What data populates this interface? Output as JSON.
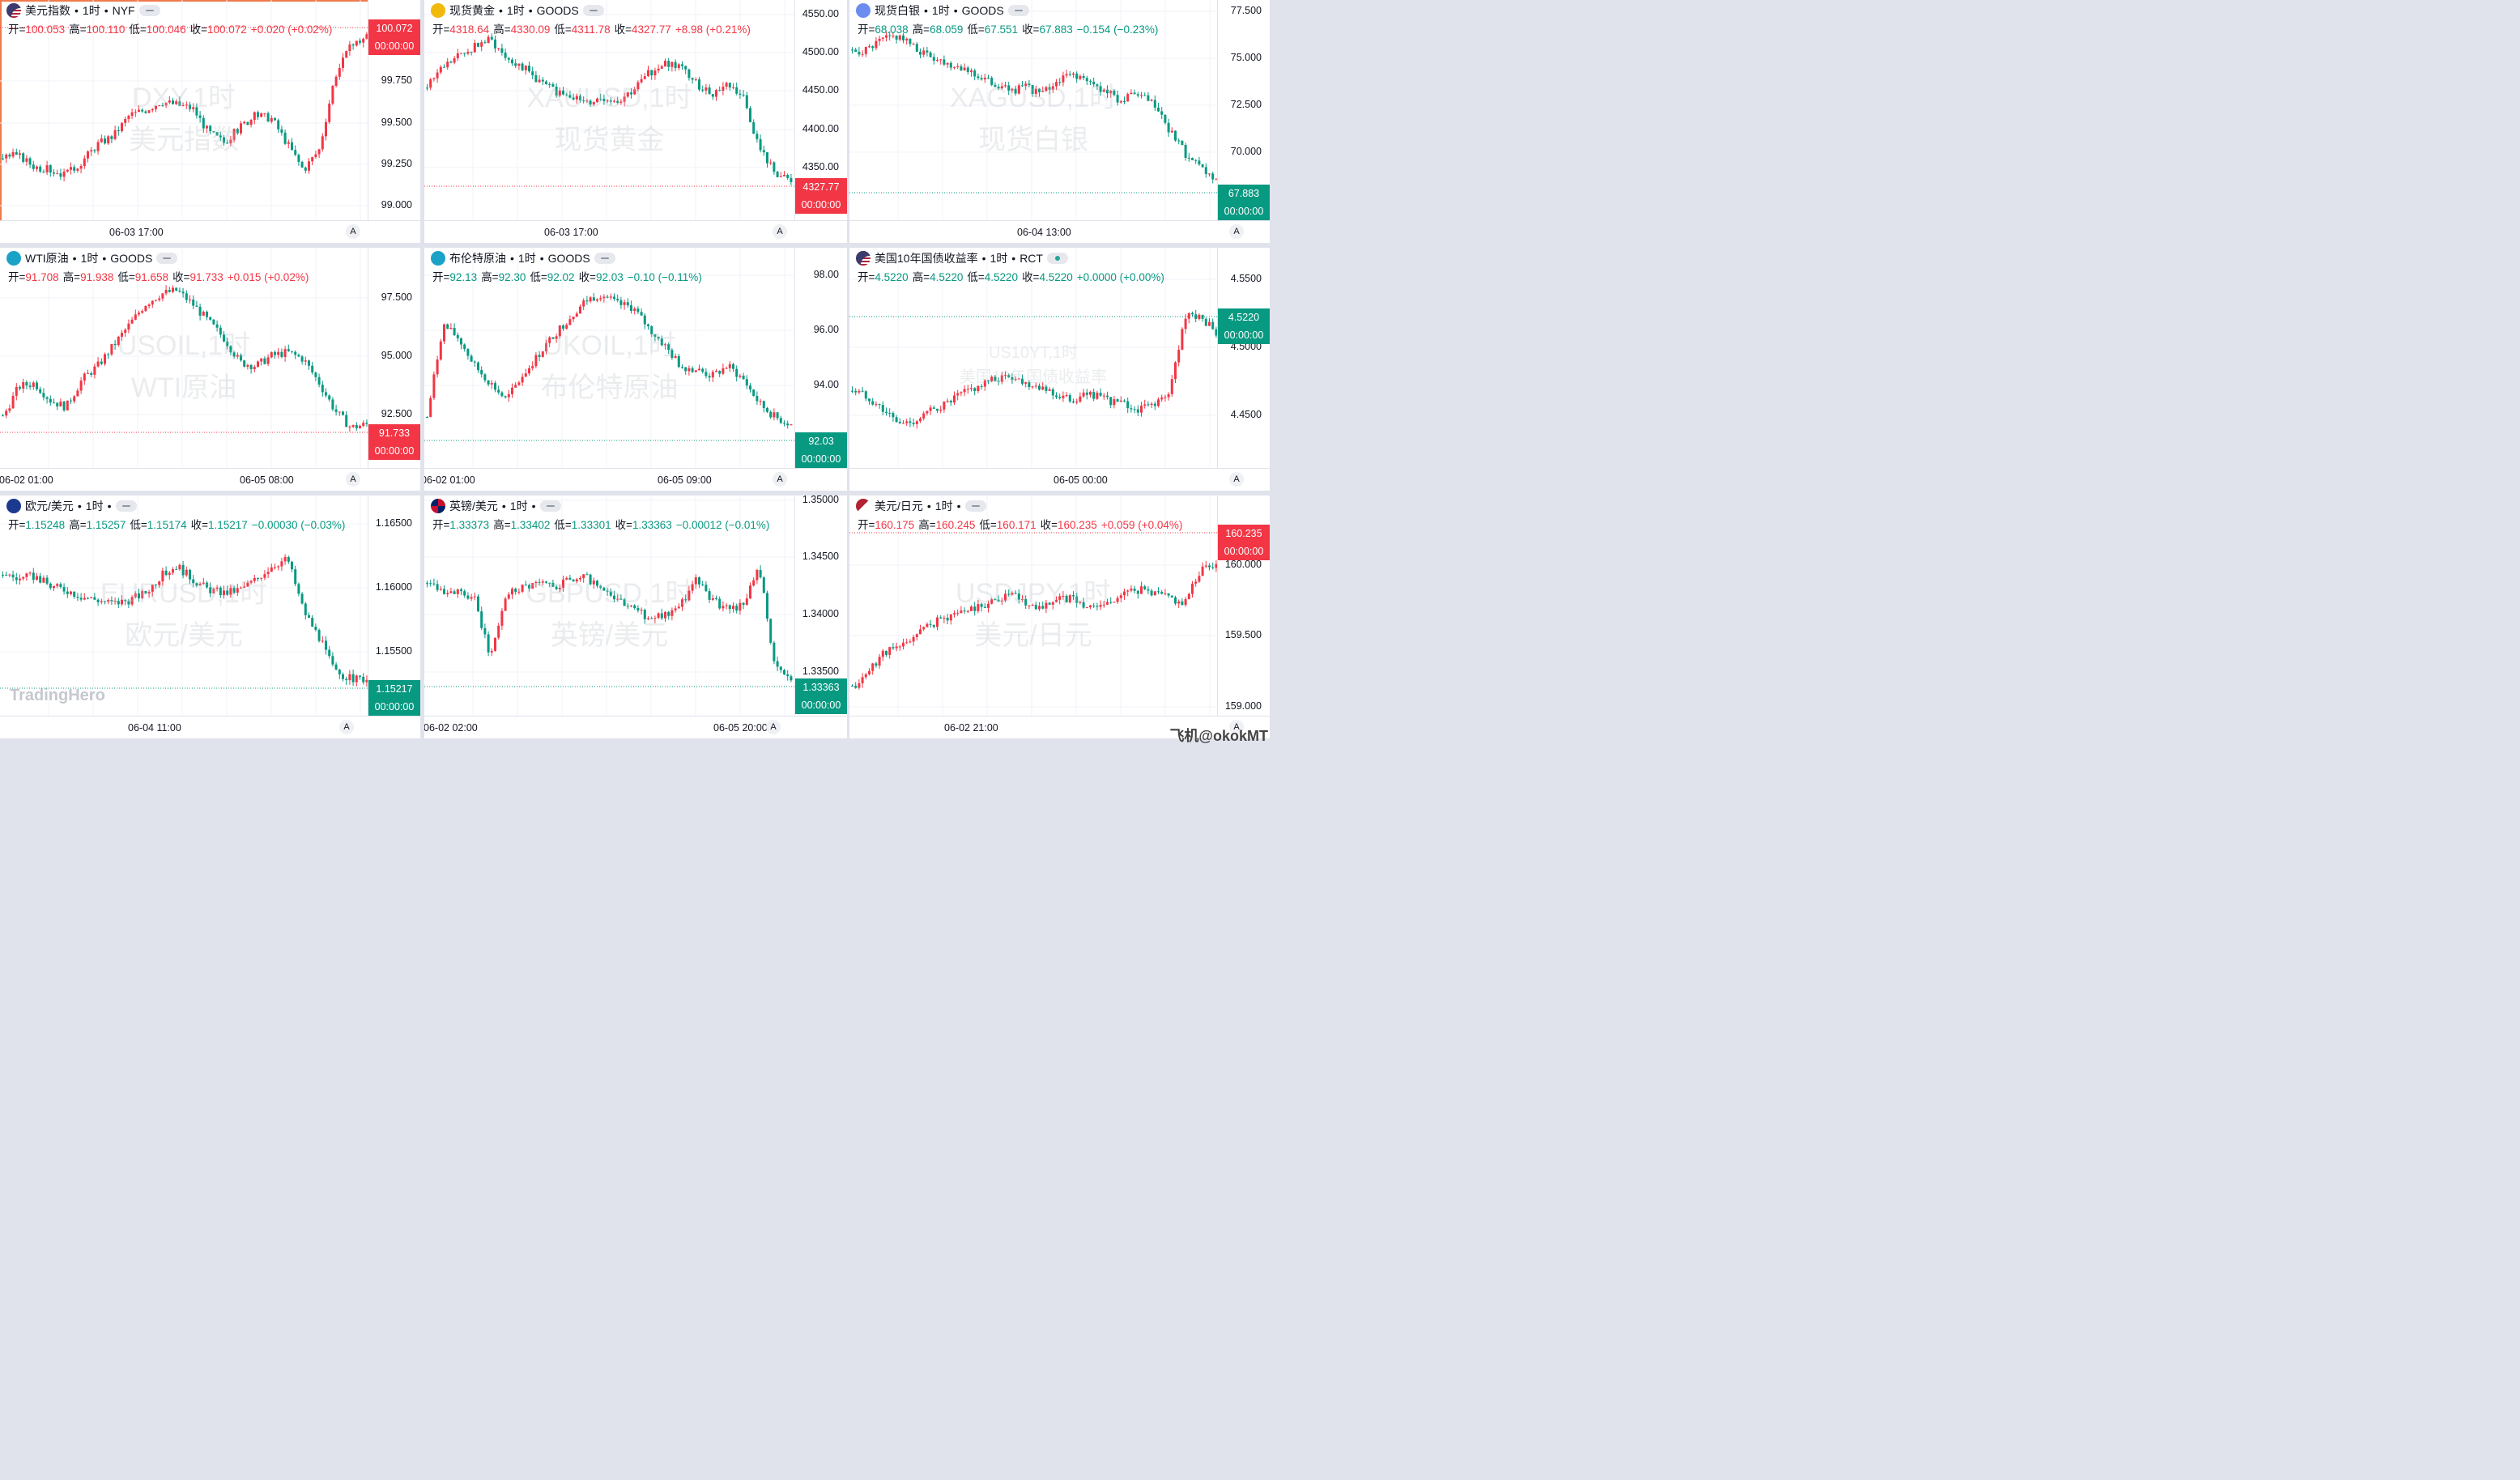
{
  "brand": "TradingHero",
  "footer_watermark": "飞机@okokMT",
  "panels": [
    {
      "symbol_name": "美元指数",
      "sep1": "•",
      "interval": "1时",
      "sep2": "•",
      "exchange": "NYF",
      "flag_icon": "us-flag-icon",
      "pill": "minus",
      "open_lbl": "开=",
      "open": "100.053",
      "high_lbl": "高=",
      "high": "100.110",
      "low_lbl": "低=",
      "low": "100.046",
      "close_lbl": "收=",
      "close": "100.072",
      "change": "+0.020 (+0.02%)",
      "dir": "up",
      "wm1": "DXY,1时",
      "wm2": "美元指数",
      "ticks": [
        "99.000",
        "99.250",
        "99.500",
        "99.750"
      ],
      "price_tag": "100.072",
      "tag_time": "00:00:00",
      "times": [
        "06-03 17:00"
      ],
      "axis_btn": "A",
      "active": true
    },
    {
      "symbol_name": "现货黄金",
      "sep1": "•",
      "interval": "1时",
      "sep2": "•",
      "exchange": "GOODS",
      "flag_icon": "gold-coin-icon",
      "pill": "minus",
      "open_lbl": "开=",
      "open": "4318.64",
      "high_lbl": "高=",
      "high": "4330.09",
      "low_lbl": "低=",
      "low": "4311.78",
      "close_lbl": "收=",
      "close": "4327.77",
      "change": "+8.98 (+0.21%)",
      "dir": "up",
      "wm1": "XAUUSD,1时",
      "wm2": "现货黄金",
      "ticks": [
        "4350.00",
        "4400.00",
        "4450.00",
        "4500.00",
        "4550.00"
      ],
      "price_tag": "4327.77",
      "tag_time": "00:00:00",
      "times": [
        "06-03 17:00"
      ],
      "axis_btn": "A"
    },
    {
      "symbol_name": "现货白银",
      "sep1": "•",
      "interval": "1时",
      "sep2": "•",
      "exchange": "GOODS",
      "flag_icon": "silver-coin-icon",
      "pill": "minus",
      "open_lbl": "开=",
      "open": "68.038",
      "high_lbl": "高=",
      "high": "68.059",
      "low_lbl": "低=",
      "low": "67.551",
      "close_lbl": "收=",
      "close": "67.883",
      "change": "−0.154 (−0.23%)",
      "dir": "dn",
      "wm1": "XAGUSD,1时",
      "wm2": "现货白银",
      "ticks": [
        "70.000",
        "72.500",
        "75.000",
        "77.500"
      ],
      "price_tag": "67.883",
      "tag_time": "00:00:00",
      "times": [
        "06-04 13:00"
      ],
      "axis_btn": "A"
    },
    {
      "symbol_name": "WTI原油",
      "sep1": "•",
      "interval": "1时",
      "sep2": "•",
      "exchange": "GOODS",
      "flag_icon": "oil-icon",
      "pill": "minus",
      "open_lbl": "开=",
      "open": "91.708",
      "high_lbl": "高=",
      "high": "91.938",
      "low_lbl": "低=",
      "low": "91.658",
      "close_lbl": "收=",
      "close": "91.733",
      "change": "+0.015 (+0.02%)",
      "dir": "up",
      "wm1": "USOIL,1时",
      "wm2": "WTI原油",
      "ticks": [
        "92.500",
        "95.000",
        "97.500"
      ],
      "price_tag": "91.733",
      "tag_time": "00:00:00",
      "times": [
        "06-02 01:00",
        "06-05 08:00"
      ],
      "axis_btn": "A"
    },
    {
      "symbol_name": "布伦特原油",
      "sep1": "•",
      "interval": "1时",
      "sep2": "•",
      "exchange": "GOODS",
      "flag_icon": "oil-icon",
      "pill": "minus",
      "open_lbl": "开=",
      "open": "92.13",
      "high_lbl": "高=",
      "high": "92.30",
      "low_lbl": "低=",
      "low": "92.02",
      "close_lbl": "收=",
      "close": "92.03",
      "change": "−0.10 (−0.11%)",
      "dir": "dn",
      "wm1": "UKOIL,1时",
      "wm2": "布伦特原油",
      "ticks": [
        "94.00",
        "96.00",
        "98.00"
      ],
      "price_tag": "92.03",
      "tag_time": "00:00:00",
      "times": [
        "06-02 01:00",
        "06-05 09:00"
      ],
      "axis_btn": "A"
    },
    {
      "symbol_name": "美国10年国债收益率",
      "sep1": "•",
      "interval": "1时",
      "sep2": "•",
      "exchange": "RCT",
      "flag_icon": "us-flag-icon",
      "pill": "dot",
      "open_lbl": "开=",
      "open": "4.5220",
      "high_lbl": "高=",
      "high": "4.5220",
      "low_lbl": "低=",
      "low": "4.5220",
      "close_lbl": "收=",
      "close": "4.5220",
      "change": "+0.0000 (+0.00%)",
      "dir": "dn",
      "wm1": "US10YT,1时",
      "wm2": "美国10年国债收益率",
      "ticks": [
        "4.4500",
        "4.5000",
        "4.5500"
      ],
      "price_tag": "4.5220",
      "tag_time": "00:00:00",
      "times": [
        "06-05 00:00"
      ],
      "axis_btn": "A"
    },
    {
      "symbol_name": "欧元/美元",
      "sep1": "•",
      "interval": "1时",
      "sep2": "•",
      "exchange": "",
      "flag_icon": "eu-flag-icon",
      "pill": "minus",
      "open_lbl": "开=",
      "open": "1.15248",
      "high_lbl": "高=",
      "high": "1.15257",
      "low_lbl": "低=",
      "low": "1.15174",
      "close_lbl": "收=",
      "close": "1.15217",
      "change": "−0.00030 (−0.03%)",
      "dir": "dn",
      "wm1": "EURUSD,1时",
      "wm2": "欧元/美元",
      "ticks": [
        "1.15500",
        "1.16000",
        "1.16500"
      ],
      "price_tag": "1.15217",
      "tag_time": "00:00:00",
      "times": [
        "06-04 11:00"
      ],
      "axis_btn": "A"
    },
    {
      "symbol_name": "英镑/美元",
      "sep1": "•",
      "interval": "1时",
      "sep2": "•",
      "exchange": "",
      "flag_icon": "uk-flag-icon",
      "pill": "minus",
      "open_lbl": "开=",
      "open": "1.33373",
      "high_lbl": "高=",
      "high": "1.33402",
      "low_lbl": "低=",
      "low": "1.33301",
      "close_lbl": "收=",
      "close": "1.33363",
      "change": "−0.00012 (−0.01%)",
      "dir": "dn",
      "wm1": "GBPUSD,1时",
      "wm2": "英镑/美元",
      "ticks": [
        "1.33500",
        "1.34000",
        "1.34500",
        "1.35000"
      ],
      "price_tag": "1.33363",
      "tag_time": "00:00:00",
      "times": [
        "06-02 02:00",
        "06-05 20:00"
      ],
      "axis_btn": "A"
    },
    {
      "symbol_name": "美元/日元",
      "sep1": "•",
      "interval": "1时",
      "sep2": "•",
      "exchange": "",
      "flag_icon": "us-jp-flag-icon",
      "pill": "minus",
      "open_lbl": "开=",
      "open": "160.175",
      "high_lbl": "高=",
      "high": "160.245",
      "low_lbl": "低=",
      "low": "160.171",
      "close_lbl": "收=",
      "close": "160.235",
      "change": "+0.059 (+0.04%)",
      "dir": "up",
      "wm1": "USDJPY,1时",
      "wm2": "美元/日元",
      "ticks": [
        "159.000",
        "159.500",
        "160.000"
      ],
      "price_tag": "160.235",
      "tag_time": "00:00:00",
      "times": [
        "06-02 21:00"
      ],
      "axis_btn": "A"
    }
  ],
  "colors": {
    "up": "#f23645",
    "down": "#089981",
    "active_border": "#f07a4a",
    "grid": "#f0f3fa"
  }
}
